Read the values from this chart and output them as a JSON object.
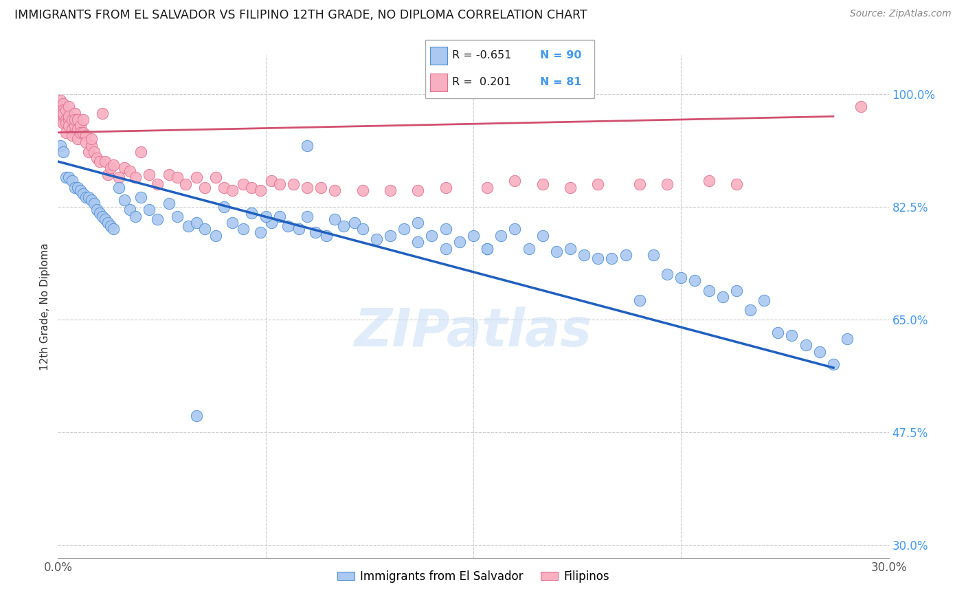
{
  "title": "IMMIGRANTS FROM EL SALVADOR VS FILIPINO 12TH GRADE, NO DIPLOMA CORRELATION CHART",
  "source": "Source: ZipAtlas.com",
  "ylabel": "12th Grade, No Diploma",
  "y_ticks": [
    0.3,
    0.475,
    0.65,
    0.825,
    1.0
  ],
  "y_tick_labels": [
    "30.0%",
    "47.5%",
    "65.0%",
    "82.5%",
    "100.0%"
  ],
  "x_range": [
    0.0,
    0.3
  ],
  "y_range": [
    0.28,
    1.06
  ],
  "legend_r1": "R = -0.651",
  "legend_n1": "N = 90",
  "legend_r2": "R =  0.201",
  "legend_n2": "N = 81",
  "blue_color": "#aac8f0",
  "blue_edge_color": "#5090d0",
  "blue_line_color": "#2060c0",
  "pink_color": "#f8b0c0",
  "pink_edge_color": "#e07090",
  "pink_line_color": "#d05070",
  "blue_line_x": [
    0.0,
    0.28
  ],
  "blue_line_y": [
    0.895,
    0.575
  ],
  "pink_line_x": [
    0.0,
    0.28
  ],
  "pink_line_y": [
    0.94,
    0.965
  ],
  "blue_scatter_x": [
    0.001,
    0.002,
    0.003,
    0.004,
    0.005,
    0.006,
    0.007,
    0.008,
    0.009,
    0.01,
    0.011,
    0.012,
    0.013,
    0.014,
    0.015,
    0.016,
    0.017,
    0.018,
    0.019,
    0.02,
    0.022,
    0.024,
    0.026,
    0.028,
    0.03,
    0.033,
    0.036,
    0.04,
    0.043,
    0.047,
    0.05,
    0.053,
    0.057,
    0.06,
    0.063,
    0.067,
    0.07,
    0.073,
    0.077,
    0.08,
    0.083,
    0.087,
    0.09,
    0.093,
    0.097,
    0.1,
    0.103,
    0.107,
    0.11,
    0.115,
    0.12,
    0.125,
    0.13,
    0.135,
    0.14,
    0.145,
    0.15,
    0.155,
    0.16,
    0.165,
    0.17,
    0.175,
    0.18,
    0.185,
    0.19,
    0.195,
    0.2,
    0.205,
    0.21,
    0.215,
    0.22,
    0.225,
    0.23,
    0.235,
    0.24,
    0.245,
    0.25,
    0.255,
    0.26,
    0.265,
    0.27,
    0.275,
    0.28,
    0.285,
    0.14,
    0.155,
    0.13,
    0.09,
    0.075,
    0.05
  ],
  "blue_scatter_y": [
    0.92,
    0.91,
    0.87,
    0.87,
    0.865,
    0.855,
    0.855,
    0.85,
    0.845,
    0.84,
    0.84,
    0.835,
    0.83,
    0.82,
    0.815,
    0.81,
    0.805,
    0.8,
    0.795,
    0.79,
    0.855,
    0.835,
    0.82,
    0.81,
    0.84,
    0.82,
    0.805,
    0.83,
    0.81,
    0.795,
    0.8,
    0.79,
    0.78,
    0.825,
    0.8,
    0.79,
    0.815,
    0.785,
    0.8,
    0.81,
    0.795,
    0.79,
    0.81,
    0.785,
    0.78,
    0.805,
    0.795,
    0.8,
    0.79,
    0.775,
    0.78,
    0.79,
    0.8,
    0.78,
    0.79,
    0.77,
    0.78,
    0.76,
    0.78,
    0.79,
    0.76,
    0.78,
    0.755,
    0.76,
    0.75,
    0.745,
    0.745,
    0.75,
    0.68,
    0.75,
    0.72,
    0.715,
    0.71,
    0.695,
    0.685,
    0.695,
    0.665,
    0.68,
    0.63,
    0.625,
    0.61,
    0.6,
    0.58,
    0.62,
    0.76,
    0.76,
    0.77,
    0.92,
    0.81,
    0.5
  ],
  "pink_scatter_x": [
    0.001,
    0.001,
    0.001,
    0.001,
    0.002,
    0.002,
    0.002,
    0.002,
    0.002,
    0.003,
    0.003,
    0.003,
    0.003,
    0.004,
    0.004,
    0.004,
    0.004,
    0.005,
    0.005,
    0.005,
    0.006,
    0.006,
    0.006,
    0.007,
    0.007,
    0.007,
    0.008,
    0.008,
    0.009,
    0.009,
    0.01,
    0.01,
    0.011,
    0.012,
    0.012,
    0.013,
    0.014,
    0.015,
    0.016,
    0.017,
    0.018,
    0.019,
    0.02,
    0.022,
    0.024,
    0.026,
    0.028,
    0.03,
    0.033,
    0.036,
    0.04,
    0.043,
    0.046,
    0.05,
    0.053,
    0.057,
    0.06,
    0.063,
    0.067,
    0.07,
    0.073,
    0.077,
    0.08,
    0.085,
    0.09,
    0.095,
    0.1,
    0.11,
    0.12,
    0.13,
    0.14,
    0.155,
    0.165,
    0.175,
    0.185,
    0.195,
    0.21,
    0.22,
    0.235,
    0.245,
    0.29
  ],
  "pink_scatter_y": [
    0.98,
    0.99,
    0.97,
    0.96,
    0.985,
    0.975,
    0.965,
    0.955,
    0.97,
    0.975,
    0.96,
    0.955,
    0.94,
    0.96,
    0.98,
    0.95,
    0.965,
    0.96,
    0.945,
    0.935,
    0.97,
    0.95,
    0.96,
    0.945,
    0.93,
    0.96,
    0.95,
    0.94,
    0.96,
    0.94,
    0.935,
    0.925,
    0.91,
    0.92,
    0.93,
    0.91,
    0.9,
    0.895,
    0.97,
    0.895,
    0.875,
    0.885,
    0.89,
    0.87,
    0.885,
    0.88,
    0.87,
    0.91,
    0.875,
    0.86,
    0.875,
    0.87,
    0.86,
    0.87,
    0.855,
    0.87,
    0.855,
    0.85,
    0.86,
    0.855,
    0.85,
    0.865,
    0.86,
    0.86,
    0.855,
    0.855,
    0.85,
    0.85,
    0.85,
    0.85,
    0.855,
    0.855,
    0.865,
    0.86,
    0.855,
    0.86,
    0.86,
    0.86,
    0.865,
    0.86,
    0.98
  ]
}
